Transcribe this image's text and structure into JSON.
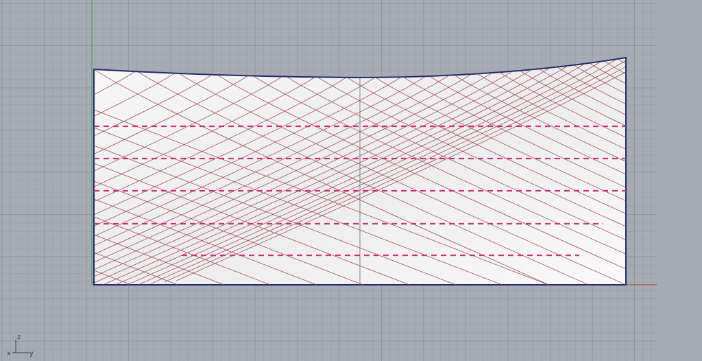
{
  "viewport": {
    "background_color": "#a5acb3",
    "grid_minor_color": "#9aa1a8",
    "grid_major_color": "#8d949b",
    "surface_color": "#f4f4f4",
    "surface_edge_color": "#1f2a6b",
    "lattice_color": "#9c3b4a",
    "dash_color": "#c8337f",
    "x_axis_color": "#c0392b",
    "y_axis_color": "#3a9a4a"
  },
  "axis_widget": {
    "x": "x",
    "y": "y",
    "z": "z"
  }
}
